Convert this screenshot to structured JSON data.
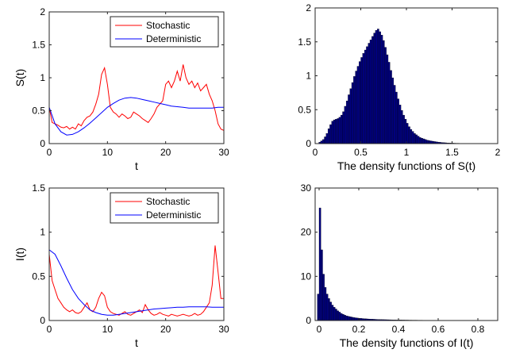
{
  "chart_data": [
    {
      "type": "line",
      "xlabel": "t",
      "ylabel": "S(t)",
      "xlim": [
        0,
        30
      ],
      "ylim": [
        0,
        2
      ],
      "xticks": [
        "0",
        "10",
        "20",
        "30"
      ],
      "yticks": [
        "0",
        "0.5",
        "1",
        "1.5",
        "2"
      ],
      "legend_position": "top-right",
      "grid": false,
      "series": [
        {
          "name": "Stochastic",
          "color": "#ff0000",
          "x": [
            0,
            0.5,
            1,
            1.5,
            2,
            2.5,
            3,
            3.5,
            4,
            4.5,
            5,
            5.5,
            6,
            6.5,
            7,
            7.5,
            8,
            8.5,
            9,
            9.5,
            10,
            10.5,
            11,
            11.5,
            12,
            12.5,
            13,
            13.5,
            14,
            14.5,
            15,
            15.5,
            16,
            16.5,
            17,
            17.5,
            18,
            18.5,
            19,
            19.5,
            20,
            20.5,
            21,
            21.5,
            22,
            22.5,
            23,
            23.5,
            24,
            24.5,
            25,
            25.5,
            26,
            26.5,
            27,
            27.5,
            28,
            28.5,
            29,
            29.5,
            30
          ],
          "values": [
            0.55,
            0.32,
            0.3,
            0.28,
            0.25,
            0.24,
            0.26,
            0.22,
            0.25,
            0.22,
            0.3,
            0.27,
            0.35,
            0.4,
            0.42,
            0.48,
            0.6,
            0.75,
            1.05,
            1.15,
            0.9,
            0.55,
            0.48,
            0.45,
            0.4,
            0.45,
            0.42,
            0.38,
            0.4,
            0.48,
            0.45,
            0.42,
            0.38,
            0.35,
            0.32,
            0.38,
            0.45,
            0.55,
            0.6,
            0.65,
            0.9,
            0.95,
            0.85,
            0.95,
            1.1,
            0.95,
            1.2,
            1.0,
            0.9,
            0.95,
            0.85,
            0.92,
            0.8,
            0.85,
            0.9,
            0.75,
            0.65,
            0.5,
            0.3,
            0.22,
            0.2
          ]
        },
        {
          "name": "Deterministic",
          "color": "#0000ff",
          "x": [
            0,
            1,
            2,
            3,
            4,
            5,
            6,
            7,
            8,
            9,
            10,
            11,
            12,
            13,
            14,
            15,
            16,
            17,
            18,
            19,
            20,
            21,
            22,
            23,
            24,
            25,
            26,
            27,
            28,
            29,
            30
          ],
          "values": [
            0.55,
            0.3,
            0.18,
            0.13,
            0.14,
            0.18,
            0.24,
            0.31,
            0.39,
            0.47,
            0.55,
            0.61,
            0.66,
            0.69,
            0.7,
            0.69,
            0.67,
            0.65,
            0.63,
            0.61,
            0.59,
            0.57,
            0.56,
            0.55,
            0.54,
            0.54,
            0.54,
            0.54,
            0.54,
            0.55,
            0.55
          ]
        }
      ]
    },
    {
      "type": "bar",
      "xlabel": "The density functions of S(t)",
      "xlim": [
        0,
        2
      ],
      "ylim": [
        0,
        2
      ],
      "xticks": [
        "0",
        "0.5",
        "1",
        "1.5",
        "2"
      ],
      "yticks": [
        "0",
        "0.5",
        "1",
        "1.5",
        "2"
      ],
      "bar_color": "#000080",
      "bin_width": 0.02,
      "x": [
        0.02,
        0.04,
        0.06,
        0.08,
        0.1,
        0.12,
        0.14,
        0.16,
        0.18,
        0.2,
        0.22,
        0.24,
        0.26,
        0.28,
        0.3,
        0.32,
        0.34,
        0.36,
        0.38,
        0.4,
        0.42,
        0.44,
        0.46,
        0.48,
        0.5,
        0.52,
        0.54,
        0.56,
        0.58,
        0.6,
        0.62,
        0.64,
        0.66,
        0.68,
        0.7,
        0.72,
        0.74,
        0.76,
        0.78,
        0.8,
        0.82,
        0.84,
        0.86,
        0.88,
        0.9,
        0.92,
        0.94,
        0.96,
        0.98,
        1.0,
        1.02,
        1.04,
        1.06,
        1.08,
        1.1,
        1.12,
        1.14,
        1.16,
        1.18,
        1.2,
        1.22,
        1.24,
        1.26,
        1.28,
        1.3,
        1.32,
        1.34,
        1.36,
        1.38,
        1.4,
        1.42,
        1.44,
        1.46,
        1.48,
        1.5,
        1.52,
        1.54,
        1.56,
        1.58,
        1.6,
        1.62,
        1.64,
        1.66,
        1.68,
        1.7,
        1.72,
        1.74,
        1.76,
        1.78,
        1.8,
        1.82,
        1.84,
        1.86,
        1.88,
        1.9,
        1.92,
        1.94,
        1.96,
        1.98
      ],
      "values": [
        0.0,
        0.02,
        0.04,
        0.06,
        0.1,
        0.15,
        0.22,
        0.28,
        0.33,
        0.35,
        0.36,
        0.37,
        0.39,
        0.42,
        0.47,
        0.55,
        0.63,
        0.72,
        0.81,
        0.9,
        0.99,
        1.07,
        1.14,
        1.21,
        1.27,
        1.33,
        1.38,
        1.43,
        1.48,
        1.53,
        1.58,
        1.63,
        1.67,
        1.69,
        1.65,
        1.6,
        1.52,
        1.42,
        1.31,
        1.2,
        1.08,
        0.97,
        0.86,
        0.76,
        0.66,
        0.57,
        0.49,
        0.42,
        0.36,
        0.3,
        0.25,
        0.21,
        0.18,
        0.15,
        0.13,
        0.11,
        0.09,
        0.08,
        0.07,
        0.06,
        0.05,
        0.045,
        0.04,
        0.035,
        0.03,
        0.026,
        0.022,
        0.019,
        0.016,
        0.014,
        0.012,
        0.01,
        0.009,
        0.008,
        0.007,
        0.006,
        0.005,
        0.005,
        0.004,
        0.004,
        0.003,
        0.003,
        0.003,
        0.002,
        0.002,
        0.002,
        0.002,
        0.002,
        0.001,
        0.001,
        0.001,
        0.001,
        0.001,
        0.001,
        0.001,
        0.001,
        0.001,
        0.001,
        0.001
      ]
    },
    {
      "type": "line",
      "xlabel": "t",
      "ylabel": "I(t)",
      "xlim": [
        0,
        30
      ],
      "ylim": [
        0,
        1.5
      ],
      "xticks": [
        "0",
        "10",
        "20",
        "30"
      ],
      "yticks": [
        "0",
        "0.5",
        "1",
        "1.5"
      ],
      "legend_position": "top-right",
      "grid": false,
      "series": [
        {
          "name": "Stochastic",
          "color": "#ff0000",
          "x": [
            0,
            0.5,
            1,
            1.5,
            2,
            2.5,
            3,
            3.5,
            4,
            4.5,
            5,
            5.5,
            6,
            6.5,
            7,
            7.5,
            8,
            8.5,
            9,
            9.5,
            10,
            10.5,
            11,
            11.5,
            12,
            12.5,
            13,
            13.5,
            14,
            14.5,
            15,
            15.5,
            16,
            16.5,
            17,
            17.5,
            18,
            18.5,
            19,
            19.5,
            20,
            20.5,
            21,
            21.5,
            22,
            22.5,
            23,
            23.5,
            24,
            24.5,
            25,
            25.5,
            26,
            26.5,
            27,
            27.5,
            28,
            28.5,
            29,
            29.5,
            30
          ],
          "values": [
            0.75,
            0.45,
            0.35,
            0.25,
            0.2,
            0.15,
            0.12,
            0.1,
            0.12,
            0.09,
            0.08,
            0.1,
            0.15,
            0.2,
            0.12,
            0.1,
            0.15,
            0.25,
            0.32,
            0.28,
            0.15,
            0.1,
            0.08,
            0.07,
            0.06,
            0.08,
            0.1,
            0.07,
            0.06,
            0.08,
            0.1,
            0.12,
            0.09,
            0.18,
            0.12,
            0.08,
            0.06,
            0.07,
            0.09,
            0.07,
            0.06,
            0.05,
            0.07,
            0.06,
            0.05,
            0.06,
            0.07,
            0.06,
            0.05,
            0.06,
            0.08,
            0.06,
            0.07,
            0.1,
            0.15,
            0.2,
            0.4,
            0.85,
            0.55,
            0.25,
            0.25
          ]
        },
        {
          "name": "Deterministic",
          "color": "#0000ff",
          "x": [
            0,
            1,
            2,
            3,
            4,
            5,
            6,
            7,
            8,
            9,
            10,
            11,
            12,
            13,
            14,
            15,
            16,
            17,
            18,
            19,
            20,
            21,
            22,
            23,
            24,
            25,
            26,
            27,
            28,
            29,
            30
          ],
          "values": [
            0.8,
            0.75,
            0.62,
            0.48,
            0.35,
            0.25,
            0.18,
            0.12,
            0.09,
            0.07,
            0.06,
            0.06,
            0.07,
            0.08,
            0.09,
            0.1,
            0.11,
            0.12,
            0.13,
            0.135,
            0.14,
            0.145,
            0.15,
            0.15,
            0.155,
            0.155,
            0.155,
            0.155,
            0.15,
            0.15,
            0.15
          ]
        }
      ]
    },
    {
      "type": "bar",
      "xlabel": "The density functions of I(t)",
      "xlim": [
        -0.02,
        0.9
      ],
      "ylim": [
        0,
        30
      ],
      "xticks": [
        "0",
        "0.2",
        "0.4",
        "0.6",
        "0.8"
      ],
      "yticks": [
        "0",
        "10",
        "20",
        "30"
      ],
      "bar_color": "#000080",
      "bin_width": 0.009,
      "x": [
        -0.009,
        0.0,
        0.009,
        0.018,
        0.027,
        0.036,
        0.045,
        0.054,
        0.063,
        0.072,
        0.081,
        0.09,
        0.099,
        0.108,
        0.117,
        0.126,
        0.135,
        0.144,
        0.153,
        0.162,
        0.171,
        0.18,
        0.189,
        0.198,
        0.207,
        0.216,
        0.225,
        0.234,
        0.243,
        0.252,
        0.261,
        0.27,
        0.279,
        0.288,
        0.297,
        0.306,
        0.315,
        0.324,
        0.333,
        0.342,
        0.351,
        0.36,
        0.369,
        0.378,
        0.387,
        0.396,
        0.405,
        0.414,
        0.423,
        0.432,
        0.441,
        0.45,
        0.459,
        0.468,
        0.477,
        0.486,
        0.495,
        0.504,
        0.513,
        0.522,
        0.531,
        0.54,
        0.549,
        0.558,
        0.567,
        0.576,
        0.585,
        0.594,
        0.603,
        0.612,
        0.621,
        0.63,
        0.639,
        0.648,
        0.657,
        0.666,
        0.675,
        0.684,
        0.693,
        0.702,
        0.711,
        0.72,
        0.729,
        0.738,
        0.747,
        0.756,
        0.765,
        0.774,
        0.783,
        0.792,
        0.801,
        0.81,
        0.819,
        0.828,
        0.837,
        0.846,
        0.855,
        0.864,
        0.873,
        0.882
      ],
      "values": [
        6.0,
        25.5,
        16.0,
        10.5,
        7.5,
        6.0,
        5.0,
        4.2,
        3.5,
        3.0,
        2.6,
        2.2,
        1.9,
        1.6,
        1.4,
        1.2,
        1.05,
        0.95,
        0.85,
        0.75,
        0.68,
        0.62,
        0.56,
        0.52,
        0.48,
        0.44,
        0.41,
        0.38,
        0.35,
        0.33,
        0.31,
        0.29,
        0.27,
        0.25,
        0.23,
        0.22,
        0.21,
        0.2,
        0.19,
        0.18,
        0.17,
        0.16,
        0.15,
        0.14,
        0.13,
        0.13,
        0.12,
        0.11,
        0.11,
        0.1,
        0.1,
        0.09,
        0.09,
        0.08,
        0.08,
        0.08,
        0.07,
        0.07,
        0.07,
        0.06,
        0.06,
        0.06,
        0.06,
        0.05,
        0.05,
        0.05,
        0.05,
        0.05,
        0.04,
        0.04,
        0.04,
        0.04,
        0.04,
        0.04,
        0.04,
        0.03,
        0.03,
        0.03,
        0.03,
        0.03,
        0.03,
        0.03,
        0.03,
        0.03,
        0.03,
        0.03,
        0.03,
        0.02,
        0.02,
        0.02,
        0.02,
        0.02,
        0.02,
        0.02,
        0.02,
        0.02,
        0.02,
        0.02,
        0.02,
        0.02
      ]
    }
  ]
}
